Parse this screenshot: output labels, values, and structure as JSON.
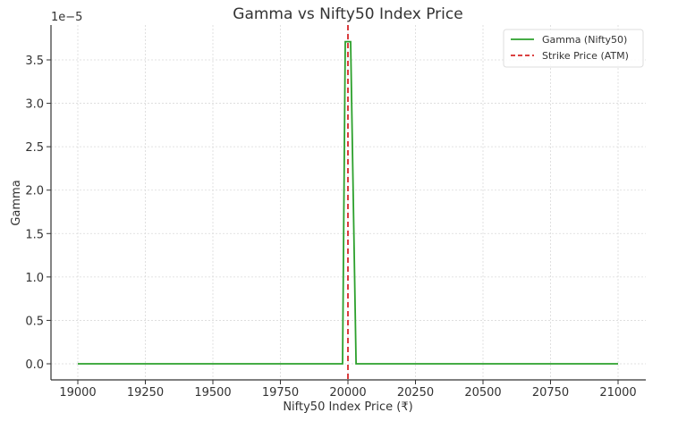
{
  "chart_data": {
    "type": "line",
    "title": "Gamma vs Nifty50 Index Price",
    "xlabel": "Nifty50 Index Price (₹)",
    "ylabel": "Gamma",
    "y_offset_label": "1e−5",
    "xlim": [
      18900,
      21100
    ],
    "ylim": [
      -0.18,
      3.9
    ],
    "x_ticks": [
      19000,
      19250,
      19500,
      19750,
      20000,
      20250,
      20500,
      20750,
      21000
    ],
    "x_tick_labels": [
      "19000",
      "19250",
      "19500",
      "19750",
      "20000",
      "20250",
      "20500",
      "20750",
      "21000"
    ],
    "y_ticks": [
      0.0,
      0.5,
      1.0,
      1.5,
      2.0,
      2.5,
      3.0,
      3.5
    ],
    "y_tick_labels": [
      "0.0",
      "0.5",
      "1.0",
      "1.5",
      "2.0",
      "2.5",
      "3.0",
      "3.5"
    ],
    "grid": true,
    "legend_position": "upper right",
    "series": [
      {
        "name": "Gamma (Nifty50)",
        "color": "#2ca02c",
        "style": "solid",
        "x": [
          19000,
          19250,
          19500,
          19750,
          19970,
          19980,
          19990,
          20010,
          20030,
          20040,
          20250,
          20500,
          20750,
          21000
        ],
        "y": [
          0,
          0,
          0,
          0,
          0,
          0,
          3.71,
          3.71,
          0,
          0,
          0,
          0,
          0,
          0
        ]
      },
      {
        "name": "Strike Price (ATM)",
        "color": "#d62728",
        "style": "dashed",
        "type": "vline",
        "x": 20000
      }
    ]
  },
  "legend": {
    "items": [
      {
        "label": "Gamma (Nifty50)",
        "color": "#2ca02c",
        "style": "solid"
      },
      {
        "label": "Strike Price (ATM)",
        "color": "#d62728",
        "style": "dashed"
      }
    ]
  }
}
